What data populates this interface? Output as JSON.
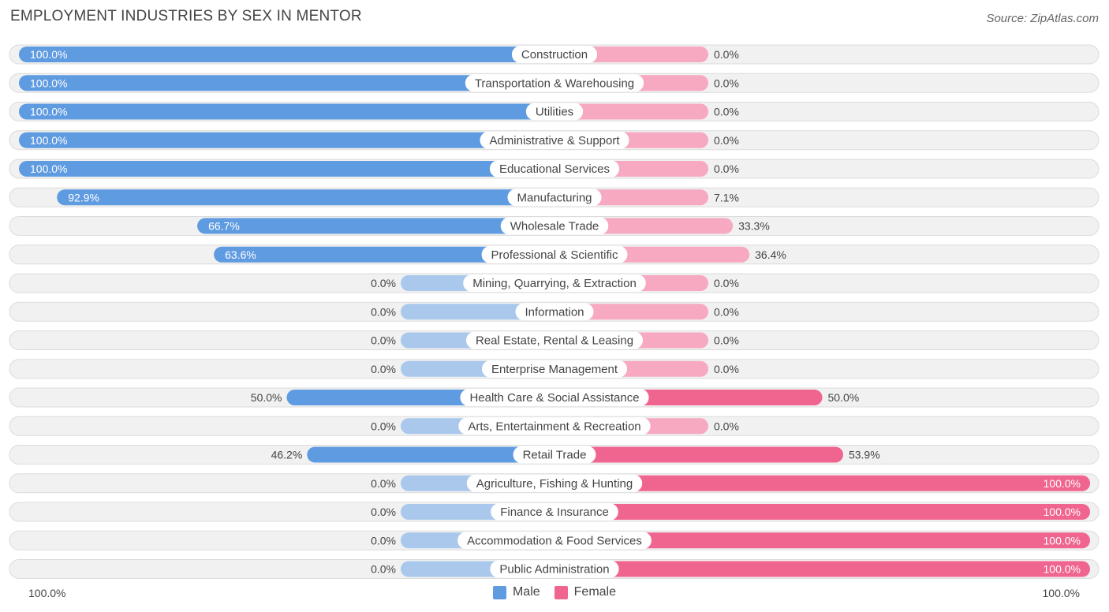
{
  "header": {
    "title": "EMPLOYMENT INDUSTRIES BY SEX IN MENTOR",
    "source": "Source: ZipAtlas.com"
  },
  "colors": {
    "male_strong": "#5f9be0",
    "male_light": "#a9c8ec",
    "female_strong": "#f0658f",
    "female_light": "#f6a9c0",
    "track": "#eeeeee"
  },
  "chart_data": {
    "type": "bar",
    "orientation": "horizontal-diverging",
    "title": "EMPLOYMENT INDUSTRIES BY SEX IN MENTOR",
    "xlim": [
      -100,
      100
    ],
    "series": [
      {
        "name": "Male",
        "values": [
          100.0,
          100.0,
          100.0,
          100.0,
          100.0,
          92.9,
          66.7,
          63.6,
          0.0,
          0.0,
          0.0,
          0.0,
          50.0,
          0.0,
          46.2,
          0.0,
          0.0,
          0.0,
          0.0
        ]
      },
      {
        "name": "Female",
        "values": [
          0.0,
          0.0,
          0.0,
          0.0,
          0.0,
          7.1,
          33.3,
          36.4,
          0.0,
          0.0,
          0.0,
          0.0,
          50.0,
          0.0,
          53.9,
          100.0,
          100.0,
          100.0,
          100.0
        ]
      }
    ],
    "categories": [
      "Construction",
      "Transportation & Warehousing",
      "Utilities",
      "Administrative & Support",
      "Educational Services",
      "Manufacturing",
      "Wholesale Trade",
      "Professional & Scientific",
      "Mining, Quarrying, & Extraction",
      "Information",
      "Real Estate, Rental & Leasing",
      "Enterprise Management",
      "Health Care & Social Assistance",
      "Arts, Entertainment & Recreation",
      "Retail Trade",
      "Agriculture, Fishing & Hunting",
      "Finance & Insurance",
      "Accommodation & Food Services",
      "Public Administration"
    ],
    "male_labels": [
      "100.0%",
      "100.0%",
      "100.0%",
      "100.0%",
      "100.0%",
      "92.9%",
      "66.7%",
      "63.6%",
      "0.0%",
      "0.0%",
      "0.0%",
      "0.0%",
      "50.0%",
      "0.0%",
      "46.2%",
      "0.0%",
      "0.0%",
      "0.0%",
      "0.0%"
    ],
    "female_labels": [
      "0.0%",
      "0.0%",
      "0.0%",
      "0.0%",
      "0.0%",
      "7.1%",
      "33.3%",
      "36.4%",
      "0.0%",
      "0.0%",
      "0.0%",
      "0.0%",
      "50.0%",
      "0.0%",
      "53.9%",
      "100.0%",
      "100.0%",
      "100.0%",
      "100.0%"
    ],
    "axis": {
      "left_label": "100.0%",
      "right_label": "100.0%"
    },
    "legend": [
      {
        "name": "Male",
        "color": "#5f9be0"
      },
      {
        "name": "Female",
        "color": "#f0658f"
      }
    ]
  }
}
